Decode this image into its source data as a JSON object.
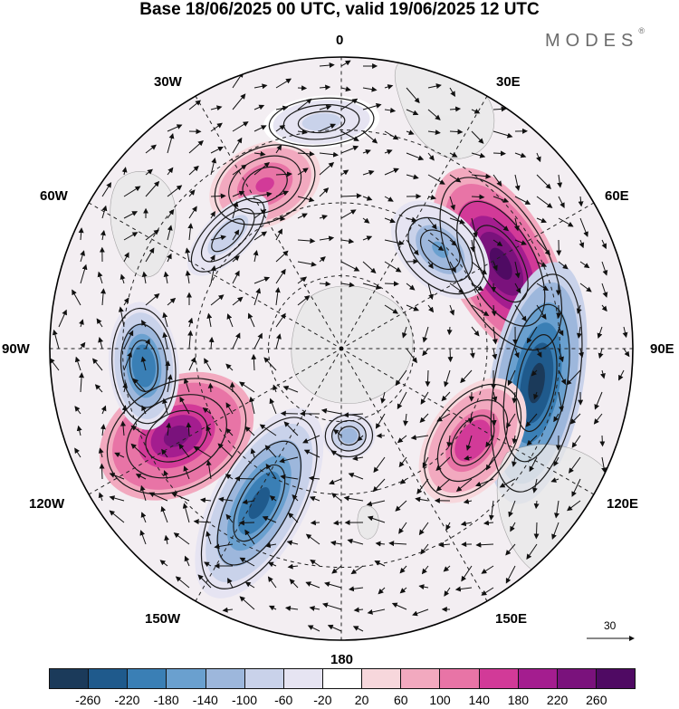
{
  "title": "Base 18/06/2025 00 UTC, valid 19/06/2025 12 UTC",
  "brand": {
    "name": "MODES",
    "mark": "®"
  },
  "longitude_labels": {
    "lon_0": "0",
    "lon_30e": "30E",
    "lon_60e": "60E",
    "lon_90e": "90E",
    "lon_120e": "120E",
    "lon_150e": "150E",
    "lon_180": "180",
    "lon_150w": "150W",
    "lon_120w": "120W",
    "lon_90w": "90W",
    "lon_60w": "60W",
    "lon_30w": "30W"
  },
  "reference_vector": {
    "label": "30"
  },
  "colorbar": {
    "ticks": [
      "-260",
      "-220",
      "-180",
      "-140",
      "-100",
      "-60",
      "-20",
      "20",
      "60",
      "100",
      "140",
      "180",
      "220",
      "260"
    ],
    "colors": [
      "#1b3a5a",
      "#1f5a8c",
      "#3a7fb5",
      "#6aa0cf",
      "#9db7dc",
      "#c9d2ea",
      "#e6e4f2",
      "#ffffff",
      "#f7d7dc",
      "#f2a9bf",
      "#e874a6",
      "#d23a98",
      "#a41d8f",
      "#7a127c",
      "#4f0a63"
    ]
  },
  "chart_data": {
    "type": "heatmap",
    "title": "Base 18/06/2025 00 UTC, valid 19/06/2025 12 UTC",
    "projection": "south polar stereographic",
    "color_levels": [
      -260,
      -220,
      -180,
      -140,
      -100,
      -60,
      -20,
      20,
      60,
      100,
      140,
      180,
      220,
      260
    ],
    "anomaly_centers": [
      {
        "lon": 62,
        "value": 270,
        "sign": "positive"
      },
      {
        "lon": 100,
        "value": -270,
        "sign": "negative"
      },
      {
        "lon": 45,
        "value": -150,
        "sign": "negative"
      },
      {
        "lon": 125,
        "value": 170,
        "sign": "positive"
      },
      {
        "lon": 175,
        "value": -120,
        "sign": "negative"
      },
      {
        "lon": -152,
        "value": -230,
        "sign": "negative"
      },
      {
        "lon": -118,
        "value": 250,
        "sign": "positive"
      },
      {
        "lon": -95,
        "value": -220,
        "sign": "negative"
      },
      {
        "lon": -25,
        "value": 150,
        "sign": "positive"
      },
      {
        "lon": -45,
        "value": -100,
        "sign": "negative"
      },
      {
        "lon": -5,
        "value": -80,
        "sign": "negative"
      }
    ],
    "reference_vector_magnitude": 30,
    "grid": true
  }
}
